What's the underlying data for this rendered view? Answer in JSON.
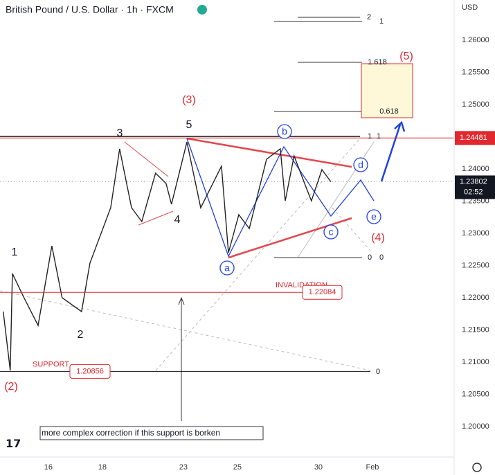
{
  "header": {
    "title": "British Pound / U.S. Dollar · 1h · FXCM",
    "currency": "USD"
  },
  "chart_data": {
    "type": "line",
    "x": [
      -1.67,
      -1.41,
      -1.33,
      -0.9,
      -0.38,
      0.13,
      0.51,
      1.23,
      1.54,
      2.31,
      2.64,
      3.08,
      3.46,
      3.97,
      4.36,
      4.56,
      5.13,
      5.64,
      6.41,
      6.67,
      7.05,
      7.44,
      8.08,
      8.59,
      8.77,
      9.1,
      9.49,
      9.74,
      10.13,
      10.46
    ],
    "values": [
      1.21785,
      1.20871,
      1.22376,
      1.22,
      1.2157,
      1.22806,
      1.22,
      1.21785,
      1.22538,
      1.23398,
      1.24312,
      1.23398,
      1.23183,
      1.23935,
      1.23774,
      1.23452,
      1.24419,
      1.23398,
      1.24043,
      1.22699,
      1.2329,
      1.23075,
      1.24151,
      1.24312,
      1.23505,
      1.24204,
      1.23774,
      1.23505,
      1.23989,
      1.23802
    ],
    "color": "#222222",
    "xlim": [
      -1.79,
      15.0
    ],
    "xticks": [
      {
        "value": 0,
        "label": "16"
      },
      {
        "value": 2,
        "label": "18"
      },
      {
        "value": 5,
        "label": "23"
      },
      {
        "value": 7,
        "label": "25"
      },
      {
        "value": 10,
        "label": "30"
      },
      {
        "value": 12,
        "label": "Feb"
      }
    ],
    "ylim": [
      1.19527,
      1.26624
    ],
    "yticks": [
      {
        "value": 1.2,
        "label": "1.20000"
      },
      {
        "value": 1.205,
        "label": "1.20500"
      },
      {
        "value": 1.21,
        "label": "1.21000"
      },
      {
        "value": 1.215,
        "label": "1.21500"
      },
      {
        "value": 1.22,
        "label": "1.22000"
      },
      {
        "value": 1.225,
        "label": "1.22500"
      },
      {
        "value": 1.23,
        "label": "1.23000"
      },
      {
        "value": 1.235,
        "label": "1.23500"
      },
      {
        "value": 1.24,
        "label": "1.24000"
      },
      {
        "value": 1.245,
        "label": "1.24500"
      },
      {
        "value": 1.25,
        "label": "1.25000"
      },
      {
        "value": 1.255,
        "label": "1.25500"
      },
      {
        "value": 1.26,
        "label": "1.26000"
      }
    ],
    "last_price": 1.23802,
    "countdown": "02:52",
    "levels": [
      {
        "name": "INVALIDATION",
        "value": 1.22084
      },
      {
        "name": "SUPPORT",
        "value": 1.20856
      },
      {
        "value": 1.24481
      }
    ],
    "wave_labels": [
      "(3)",
      "5",
      "3",
      "4",
      "1",
      "2",
      "(2)",
      "(5)",
      "(4)",
      "a",
      "b",
      "c",
      "d",
      "e"
    ],
    "fib_labels": [
      "2",
      "1",
      "1.618",
      "0.618",
      "1",
      "1",
      "0",
      "0",
      "0"
    ],
    "note": "more complex correction if this support is borken"
  }
}
